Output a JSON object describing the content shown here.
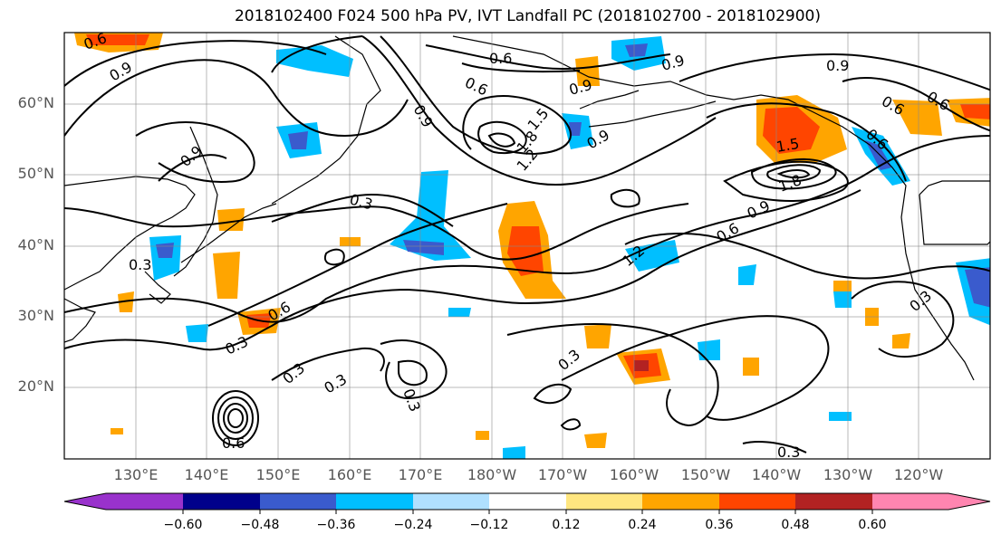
{
  "title": "2018102400 F024 500 hPa PV, IVT Landfall PC (2018102700 - 2018102900)",
  "lat_labels": [
    "60°N",
    "50°N",
    "40°N",
    "30°N",
    "20°N"
  ],
  "lon_labels": [
    "130°E",
    "140°E",
    "150°E",
    "160°E",
    "170°E",
    "180°W",
    "170°W",
    "160°W",
    "150°W",
    "140°W",
    "130°W",
    "120°W"
  ],
  "contour_labels": [
    "0.6",
    "0.9",
    "0.9",
    "0.3",
    "0.3",
    "0.6",
    "0.3",
    "0.3",
    "0.3",
    "0.6",
    "0.9",
    "1.2",
    "1.8",
    "1.5",
    "0.6",
    "0.9",
    "0.6",
    "0.9",
    "0.6",
    "0.9",
    "1.5",
    "1.8",
    "0.6",
    "0.9",
    "1.2",
    "0.3",
    "0.3",
    "0.6",
    "0.3",
    "0.3",
    "0.6",
    "0.9"
  ],
  "colorbar": {
    "tick_labels": [
      "−0.60",
      "−0.48",
      "−0.36",
      "−0.24",
      "−0.12",
      "0.12",
      "0.24",
      "0.36",
      "0.48",
      "0.60"
    ],
    "colors": [
      "#9932cc",
      "#00008b",
      "#3a5bcd",
      "#00bfff",
      "#b0e0ff",
      "#ffffff",
      "#ffe680",
      "#ffa500",
      "#ff4500",
      "#b22222",
      "#ff85b0"
    ]
  }
}
